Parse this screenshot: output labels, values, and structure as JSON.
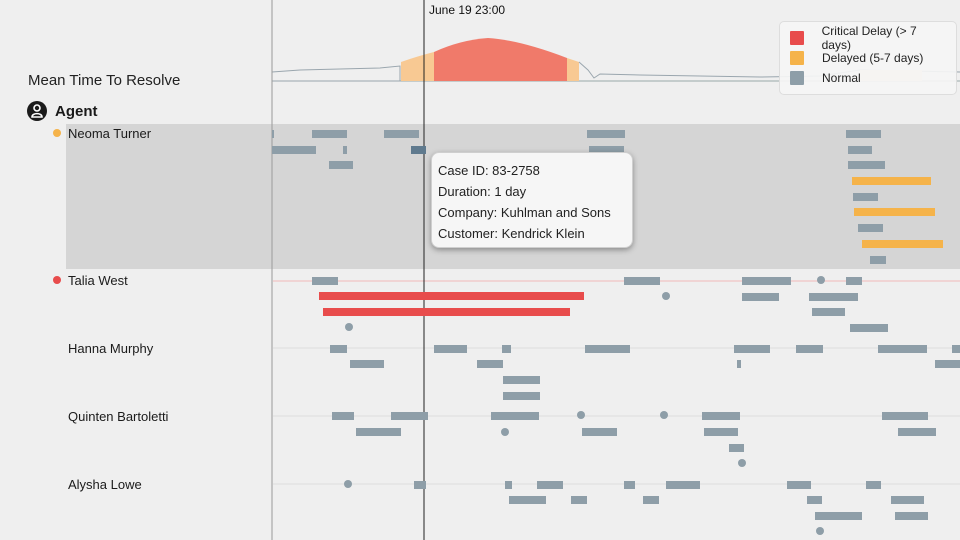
{
  "chart": {
    "title": "Mean Time To Resolve",
    "cursor_time": "June 19  23:00"
  },
  "group_header": {
    "label": "Agent"
  },
  "legend": {
    "items": [
      {
        "label": "Critical Delay (> 7 days)",
        "color": "#e84c4c"
      },
      {
        "label": "Delayed (5-7 days)",
        "color": "#f5b34a"
      },
      {
        "label": "Normal",
        "color": "#8e9ea8"
      }
    ]
  },
  "agents": [
    {
      "name": "Neoma Turner",
      "status_color": "#f5b34a"
    },
    {
      "name": "Talia West",
      "status_color": "#e84c4c"
    },
    {
      "name": "Hanna Murphy",
      "status_color": ""
    },
    {
      "name": "Quinten Bartoletti",
      "status_color": ""
    },
    {
      "name": "Alysha Lowe",
      "status_color": ""
    }
  ],
  "tooltip": {
    "case_id": "Case ID: 83-2758",
    "duration": "Duration: 1 day",
    "company": "Company: Kuhlman and Sons",
    "customer": "Customer: Kendrick Klein"
  }
}
